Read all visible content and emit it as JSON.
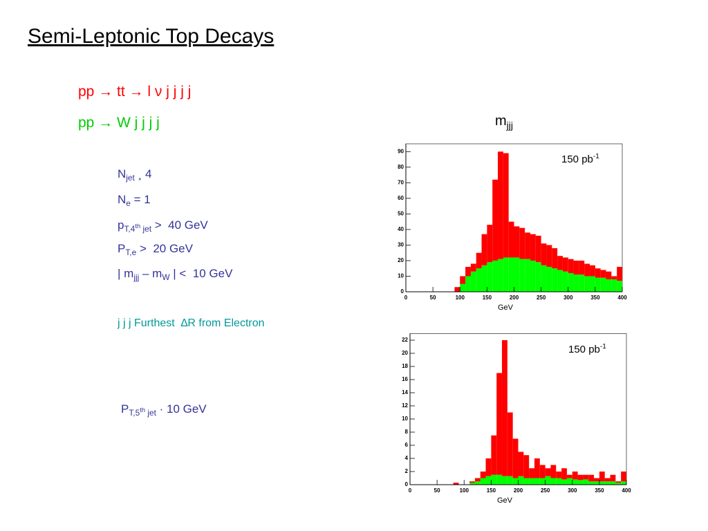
{
  "title": "Semi-Leptonic Top Decays",
  "processes": [
    "pp → tt → l ν j j j j",
    "pp → W j j j j"
  ],
  "cuts": [
    [
      "N",
      "jet",
      " ¸ 4"
    ],
    [
      "N",
      "e",
      " = 1"
    ],
    [
      "p",
      "T,4",
      "th",
      " jet",
      " >  40 GeV"
    ],
    [
      "P",
      "T,e",
      " >  20 GeV"
    ],
    [
      "| m",
      "jjj",
      " – m",
      "W",
      " | <  10 GeV"
    ]
  ],
  "selection": "j j j Furthest  ∆R from Electron",
  "veto": [
    "P",
    "T,5",
    "th",
    " jet",
    " · 10 GeV"
  ],
  "plot_title": [
    "m",
    "jjj"
  ],
  "chart_data": [
    {
      "type": "histogram",
      "annotation": [
        "150 pb",
        "-1"
      ],
      "xlabel": "GeV",
      "bins": [
        0,
        10,
        20,
        30,
        40,
        50,
        60,
        70,
        80,
        90,
        100,
        110,
        120,
        130,
        140,
        150,
        160,
        170,
        180,
        190,
        200,
        210,
        220,
        230,
        240,
        250,
        260,
        270,
        280,
        290,
        300,
        310,
        320,
        330,
        340,
        350,
        360,
        370,
        380,
        390,
        400
      ],
      "series": [
        {
          "color": "#00ff00",
          "values": [
            0,
            0,
            0,
            0,
            0,
            0,
            0,
            0,
            0,
            0,
            5,
            10,
            13,
            15,
            17,
            19,
            20,
            21,
            22,
            22,
            22,
            21,
            21,
            20,
            19,
            17,
            16,
            15,
            14,
            13,
            12,
            11,
            11,
            10,
            10,
            9,
            9,
            8,
            8,
            7
          ]
        },
        {
          "color": "#ff0000",
          "values": [
            0,
            0,
            0,
            0,
            0,
            0,
            0,
            0,
            0,
            3,
            5,
            6,
            5,
            10,
            20,
            24,
            52,
            69,
            67,
            23,
            20,
            20,
            17,
            17,
            17,
            14,
            14,
            13,
            9,
            9,
            9,
            9,
            9,
            8,
            7,
            6,
            5,
            5,
            2,
            9
          ]
        }
      ],
      "xlim": [
        0,
        400
      ],
      "xticks": [
        0,
        50,
        100,
        150,
        200,
        250,
        300,
        350,
        400
      ],
      "ylim": [
        0,
        95
      ],
      "yticks": [
        0,
        10,
        20,
        30,
        40,
        50,
        60,
        70,
        80,
        90
      ]
    },
    {
      "type": "histogram",
      "annotation": [
        "150 pb",
        "-1"
      ],
      "xlabel": "GeV",
      "bins": [
        0,
        10,
        20,
        30,
        40,
        50,
        60,
        70,
        80,
        90,
        100,
        110,
        120,
        130,
        140,
        150,
        160,
        170,
        180,
        190,
        200,
        210,
        220,
        230,
        240,
        250,
        260,
        270,
        280,
        290,
        300,
        310,
        320,
        330,
        340,
        350,
        360,
        370,
        380,
        390,
        400
      ],
      "series": [
        {
          "color": "#00ff00",
          "values": [
            0,
            0,
            0,
            0,
            0,
            0,
            0,
            0,
            0,
            0,
            0,
            0.3,
            0.5,
            1,
            1.3,
            1.5,
            1.5,
            1.3,
            1.3,
            1,
            1.3,
            1,
            1,
            1,
            1,
            1.3,
            1,
            1,
            0.8,
            1,
            0.8,
            0.7,
            0.8,
            0.5,
            0.5,
            0.5,
            0.5,
            0.5,
            0.3,
            0.5
          ]
        },
        {
          "color": "#ff0000",
          "values": [
            0,
            0,
            0,
            0,
            0,
            0,
            0,
            0,
            0.3,
            0,
            0,
            0.2,
            0.5,
            1,
            2.7,
            6,
            15.5,
            20.7,
            9.7,
            6,
            3.7,
            3.5,
            1.5,
            3,
            2,
            1.2,
            2,
            1,
            1.7,
            0.5,
            1.2,
            0.8,
            0.7,
            1,
            0.5,
            1.5,
            0.5,
            1,
            0.2,
            1.5
          ]
        }
      ],
      "xlim": [
        0,
        400
      ],
      "xticks": [
        0,
        50,
        100,
        150,
        200,
        250,
        300,
        350,
        400
      ],
      "ylim": [
        0,
        23
      ],
      "yticks": [
        0,
        2,
        4,
        6,
        8,
        10,
        12,
        14,
        16,
        18,
        20,
        22
      ]
    }
  ]
}
